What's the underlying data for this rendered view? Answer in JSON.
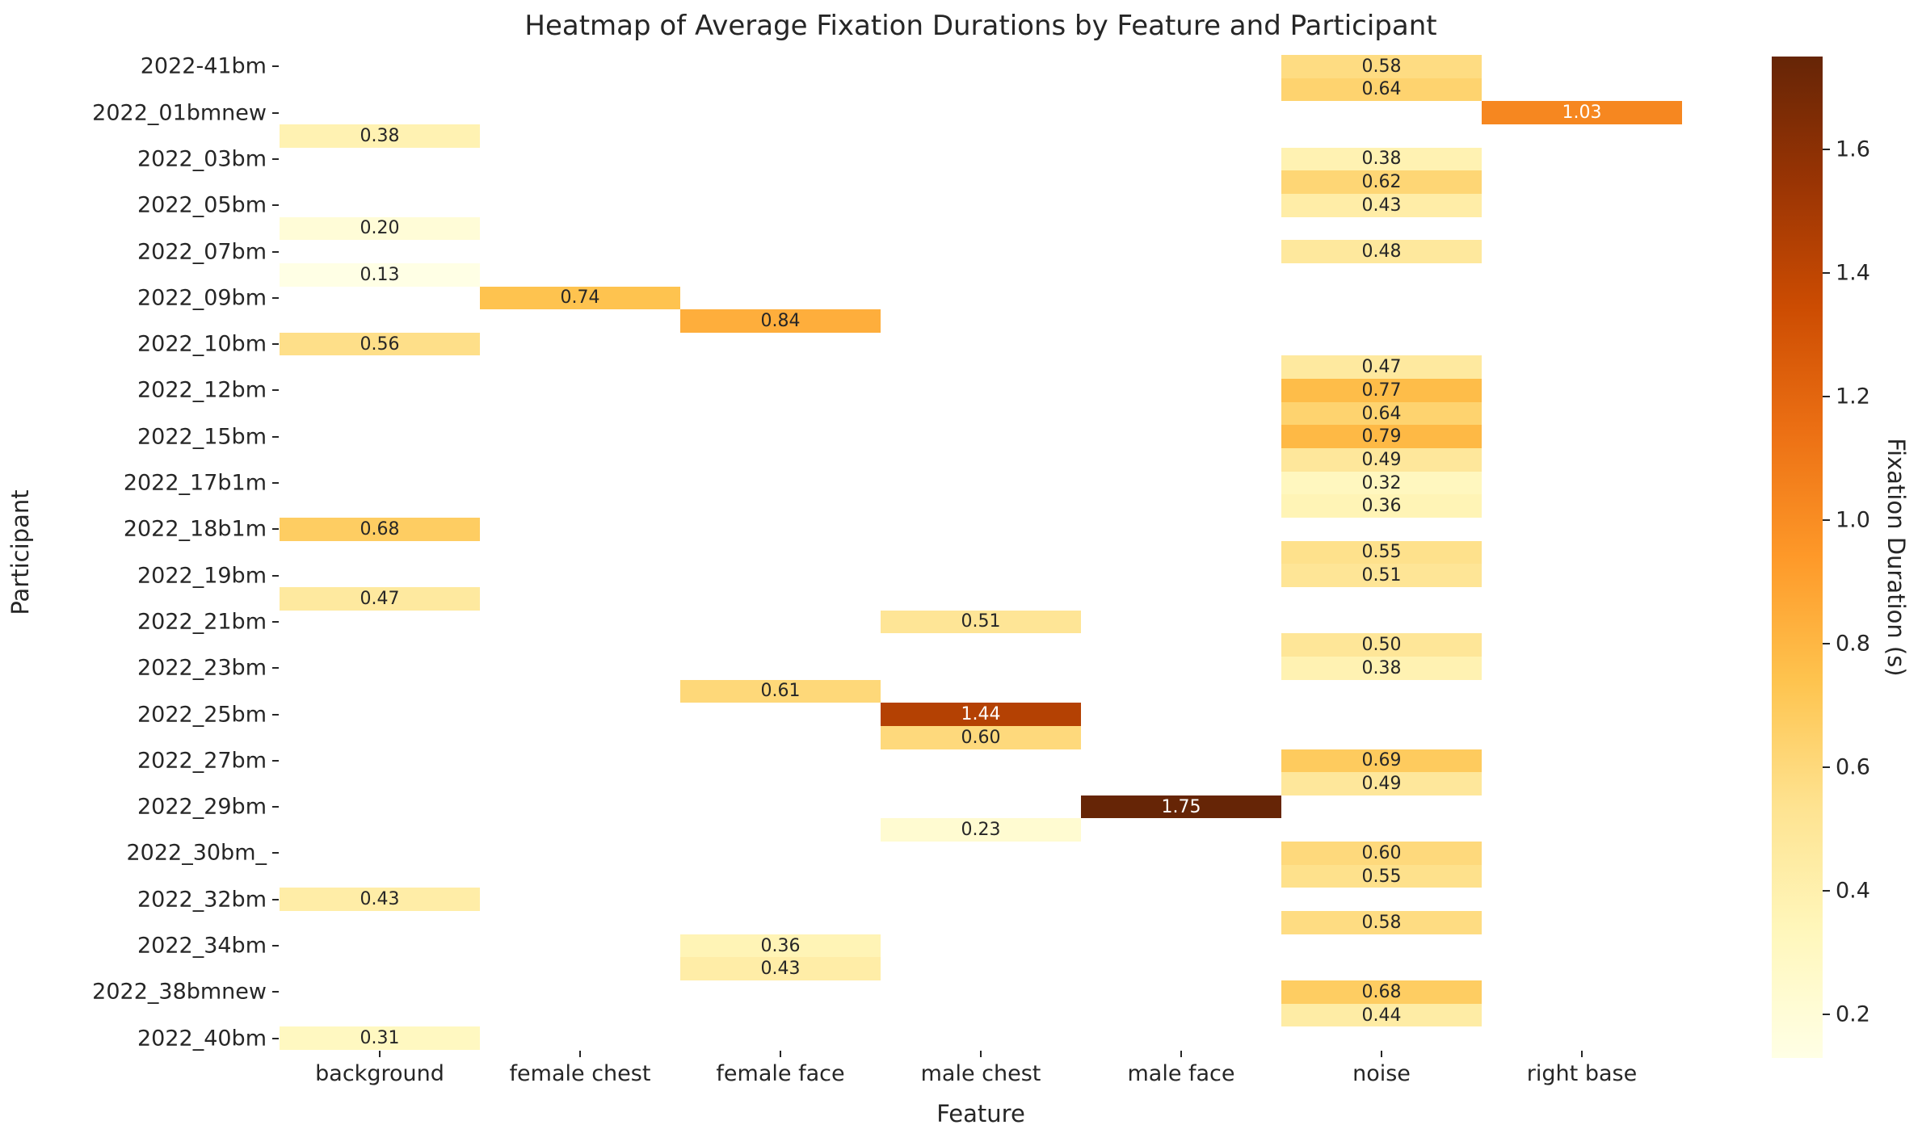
{
  "chart_data": {
    "type": "heatmap",
    "title": "Heatmap of Average Fixation Durations by Feature and Participant",
    "xlabel": "Feature",
    "ylabel": "Participant",
    "x_categories": [
      "background",
      "female chest",
      "female face",
      "male chest",
      "male face",
      "noise",
      "right base"
    ],
    "n_rows": 43,
    "n_cols": 7,
    "y_tick_labels": [
      "2022-41bm",
      "2022_01bmnew",
      "2022_03bm",
      "2022_05bm",
      "2022_07bm",
      "2022_09bm",
      "2022_10bm",
      "2022_12bm",
      "2022_15bm",
      "2022_17b1m",
      "2022_18b1m",
      "2022_19bm",
      "2022_21bm",
      "2022_23bm",
      "2022_25bm",
      "2022_27bm",
      "2022_29bm",
      "2022_30bm_",
      "2022_32bm",
      "2022_34bm",
      "2022_38bmnew",
      "2022_40bm"
    ],
    "y_tick_rows": [
      0,
      2,
      4,
      6,
      8,
      10,
      12,
      14,
      16,
      18,
      20,
      22,
      24,
      26,
      28,
      30,
      32,
      34,
      36,
      38,
      40,
      42
    ],
    "legend_position": "right colorbar",
    "grid": false,
    "colormap": {
      "name": "YlOrBr",
      "vmin": 0.13,
      "vmax": 1.75,
      "stops": [
        "#ffffe5",
        "#fff7bc",
        "#fee391",
        "#fec44f",
        "#fe9929",
        "#ec7014",
        "#cc4c02",
        "#993404",
        "#662506"
      ],
      "annotation_dark_text": "#262626",
      "annotation_light_text": "#ffffff"
    },
    "colorbar": {
      "label": "Fixation Duration (s)",
      "ticks": [
        0.2,
        0.4,
        0.6,
        0.8,
        1.0,
        1.2,
        1.4,
        1.6
      ]
    },
    "cells": [
      {
        "r": 0,
        "c": 5,
        "v": 0.58
      },
      {
        "r": 1,
        "c": 5,
        "v": 0.64
      },
      {
        "r": 2,
        "c": 6,
        "v": 1.03
      },
      {
        "r": 3,
        "c": 0,
        "v": 0.38
      },
      {
        "r": 4,
        "c": 5,
        "v": 0.38
      },
      {
        "r": 5,
        "c": 5,
        "v": 0.62
      },
      {
        "r": 6,
        "c": 5,
        "v": 0.43
      },
      {
        "r": 7,
        "c": 0,
        "v": 0.2
      },
      {
        "r": 8,
        "c": 5,
        "v": 0.48
      },
      {
        "r": 9,
        "c": 0,
        "v": 0.13
      },
      {
        "r": 10,
        "c": 1,
        "v": 0.74
      },
      {
        "r": 11,
        "c": 2,
        "v": 0.84
      },
      {
        "r": 12,
        "c": 0,
        "v": 0.56
      },
      {
        "r": 13,
        "c": 5,
        "v": 0.47
      },
      {
        "r": 14,
        "c": 5,
        "v": 0.77
      },
      {
        "r": 15,
        "c": 5,
        "v": 0.64
      },
      {
        "r": 16,
        "c": 5,
        "v": 0.79
      },
      {
        "r": 17,
        "c": 5,
        "v": 0.49
      },
      {
        "r": 18,
        "c": 5,
        "v": 0.32
      },
      {
        "r": 19,
        "c": 5,
        "v": 0.36
      },
      {
        "r": 20,
        "c": 0,
        "v": 0.68
      },
      {
        "r": 21,
        "c": 5,
        "v": 0.55
      },
      {
        "r": 22,
        "c": 5,
        "v": 0.51
      },
      {
        "r": 23,
        "c": 0,
        "v": 0.47
      },
      {
        "r": 24,
        "c": 3,
        "v": 0.51
      },
      {
        "r": 25,
        "c": 5,
        "v": 0.5
      },
      {
        "r": 26,
        "c": 5,
        "v": 0.38
      },
      {
        "r": 27,
        "c": 2,
        "v": 0.61
      },
      {
        "r": 28,
        "c": 3,
        "v": 1.44
      },
      {
        "r": 29,
        "c": 3,
        "v": 0.6
      },
      {
        "r": 30,
        "c": 5,
        "v": 0.69
      },
      {
        "r": 31,
        "c": 5,
        "v": 0.49
      },
      {
        "r": 32,
        "c": 4,
        "v": 1.75
      },
      {
        "r": 33,
        "c": 3,
        "v": 0.23
      },
      {
        "r": 34,
        "c": 5,
        "v": 0.6
      },
      {
        "r": 35,
        "c": 5,
        "v": 0.55
      },
      {
        "r": 36,
        "c": 0,
        "v": 0.43
      },
      {
        "r": 37,
        "c": 5,
        "v": 0.58
      },
      {
        "r": 38,
        "c": 2,
        "v": 0.36
      },
      {
        "r": 39,
        "c": 2,
        "v": 0.43
      },
      {
        "r": 40,
        "c": 5,
        "v": 0.68
      },
      {
        "r": 41,
        "c": 5,
        "v": 0.44
      },
      {
        "r": 42,
        "c": 0,
        "v": 0.31
      }
    ]
  }
}
